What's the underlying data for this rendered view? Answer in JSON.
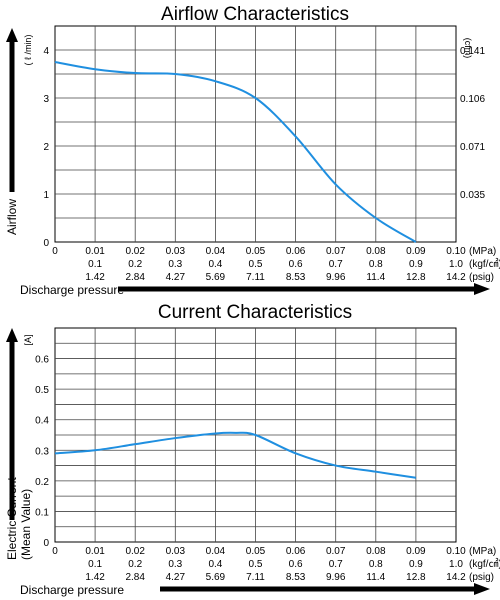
{
  "chart_data": [
    {
      "type": "line",
      "title": "Airflow Characteristics",
      "ylabel": "Airflow",
      "ylabel_unit": "( ℓ /min)",
      "y2label_unit": "(cfm)",
      "xlabel": "Discharge pressure",
      "ylim": [
        0,
        4.5
      ],
      "yticks": [
        "0",
        "1",
        "2",
        "3",
        "4"
      ],
      "y2ticks": [
        {
          "label": "0.141",
          "at": 4
        },
        {
          "label": "0.106",
          "at": 3
        },
        {
          "label": "0.071",
          "at": 2
        },
        {
          "label": "0.035",
          "at": 1
        }
      ],
      "xlim": [
        0,
        0.1
      ],
      "xaxes": [
        {
          "unit": "(MPa)",
          "ticks": [
            "0",
            "0.01",
            "0.02",
            "0.03",
            "0.04",
            "0.05",
            "0.06",
            "0.07",
            "0.08",
            "0.09",
            "0.10"
          ]
        },
        {
          "unit": "(kgf/㎠)",
          "ticks": [
            "",
            "0.1",
            "0.2",
            "0.3",
            "0.4",
            "0.5",
            "0.6",
            "0.7",
            "0.8",
            "0.9",
            "1.0"
          ]
        },
        {
          "unit": "(psig)",
          "ticks": [
            "",
            "1.42",
            "2.84",
            "4.27",
            "5.69",
            "7.11",
            "8.53",
            "9.96",
            "11.4",
            "12.8",
            "14.2"
          ]
        }
      ],
      "series": [
        {
          "color": "#1f8fe0",
          "x": [
            0,
            0.01,
            0.02,
            0.03,
            0.04,
            0.05,
            0.06,
            0.07,
            0.08,
            0.09
          ],
          "y": [
            3.75,
            3.6,
            3.52,
            3.5,
            3.35,
            3.0,
            2.2,
            1.2,
            0.5,
            0.0
          ]
        }
      ]
    },
    {
      "type": "line",
      "title": "Current Characteristics",
      "ylabel": "Electric Current",
      "ylabel_sub": "(Mean Value)",
      "ylabel_unit": "[A]",
      "xlabel": "Discharge pressure",
      "ylim": [
        0,
        0.7
      ],
      "yticks": [
        "0",
        "0.1",
        "0.2",
        "0.3",
        "0.4",
        "0.5",
        "0.6"
      ],
      "xlim": [
        0,
        0.1
      ],
      "xaxes": [
        {
          "unit": "(MPa)",
          "ticks": [
            "0",
            "0.01",
            "0.02",
            "0.03",
            "0.04",
            "0.05",
            "0.06",
            "0.07",
            "0.08",
            "0.09",
            "0.10"
          ]
        },
        {
          "unit": "(kgf/㎠)",
          "ticks": [
            "",
            "0.1",
            "0.2",
            "0.3",
            "0.4",
            "0.5",
            "0.6",
            "0.7",
            "0.8",
            "0.9",
            "1.0"
          ]
        },
        {
          "unit": "(psig)",
          "ticks": [
            "",
            "1.42",
            "2.84",
            "4.27",
            "5.69",
            "7.11",
            "8.53",
            "9.96",
            "11.4",
            "12.8",
            "14.2"
          ]
        }
      ],
      "series": [
        {
          "color": "#1f8fe0",
          "x": [
            0,
            0.01,
            0.02,
            0.03,
            0.04,
            0.045,
            0.05,
            0.06,
            0.07,
            0.08,
            0.09
          ],
          "y": [
            0.29,
            0.3,
            0.32,
            0.34,
            0.355,
            0.357,
            0.35,
            0.29,
            0.25,
            0.23,
            0.21
          ]
        }
      ]
    }
  ]
}
